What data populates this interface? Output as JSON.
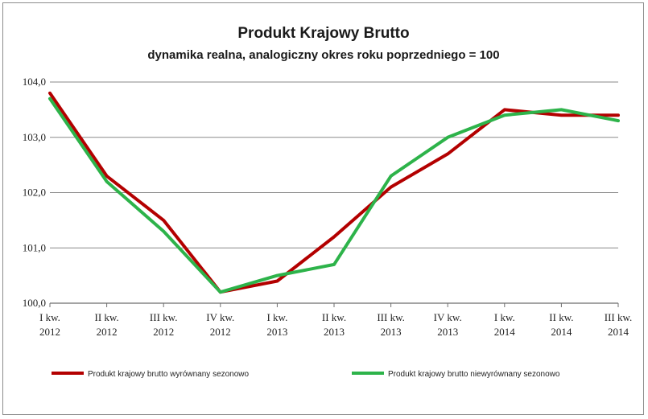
{
  "chart_data": {
    "type": "line",
    "title": "Produkt Krajowy Brutto",
    "subtitle": "dynamika realna, analogiczny okres roku poprzedniego = 100",
    "xlabel": "",
    "ylabel": "",
    "categories": [
      [
        "I kw.",
        "2012"
      ],
      [
        "II kw.",
        "2012"
      ],
      [
        "III kw.",
        "2012"
      ],
      [
        "IV kw.",
        "2012"
      ],
      [
        "I kw.",
        "2013"
      ],
      [
        "II kw.",
        "2013"
      ],
      [
        "III kw.",
        "2013"
      ],
      [
        "IV kw.",
        "2013"
      ],
      [
        "I kw.",
        "2014"
      ],
      [
        "II kw.",
        "2014"
      ],
      [
        "III kw.",
        "2014"
      ]
    ],
    "yticks": [
      "100,0",
      "101,0",
      "102,0",
      "103,0",
      "104,0"
    ],
    "ylim": [
      100,
      104
    ],
    "grid": true,
    "legend_position": "bottom",
    "series": [
      {
        "name": "Produkt krajowy brutto wyrównany sezonowo",
        "color": "#b30000",
        "values": [
          103.8,
          102.3,
          101.5,
          100.2,
          100.4,
          101.2,
          102.1,
          102.7,
          103.5,
          103.4,
          103.4
        ]
      },
      {
        "name": "Produkt krajowy brutto niewyrównany sezonowo",
        "color": "#2db34a",
        "values": [
          103.7,
          102.2,
          101.3,
          100.2,
          100.5,
          100.7,
          102.3,
          103.0,
          103.4,
          103.5,
          103.3
        ]
      }
    ]
  }
}
